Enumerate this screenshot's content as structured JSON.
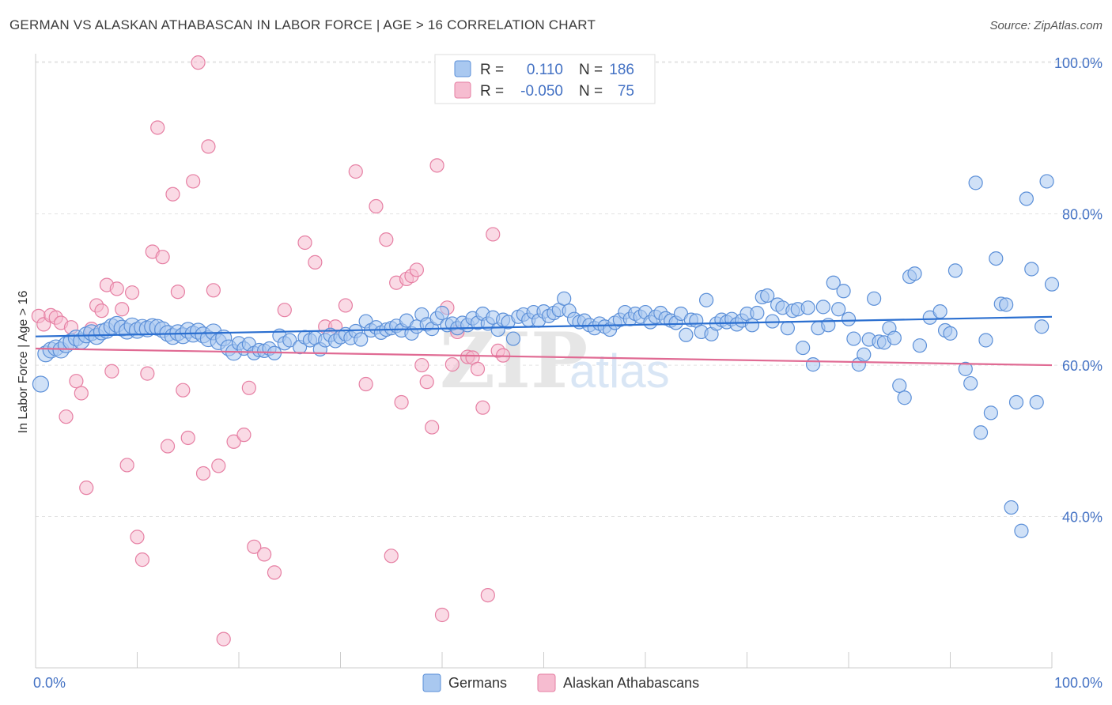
{
  "title": "GERMAN VS ALASKAN ATHABASCAN IN LABOR FORCE | AGE > 16 CORRELATION CHART",
  "source": "Source: ZipAtlas.com",
  "watermark": {
    "zip": "ZIP",
    "atlas": "atlas"
  },
  "colors": {
    "blue_fill": "#a9c8f0",
    "blue_stroke": "#5b8fd8",
    "blue_line": "#2b6fd0",
    "pink_fill": "#f6bcd0",
    "pink_stroke": "#e67fa3",
    "pink_line": "#e06a93",
    "grid": "#e3e3e3",
    "axis_text": "#4472c4"
  },
  "legend": {
    "rows": [
      {
        "r_label": "R =",
        "r_value": "0.110",
        "n_label": "N =",
        "n_value": "186",
        "series": "blue"
      },
      {
        "r_label": "R =",
        "r_value": "-0.050",
        "n_label": "N =",
        "n_value": "75",
        "series": "pink"
      }
    ]
  },
  "chart_data": {
    "type": "scatter",
    "title": "GERMAN VS ALASKAN ATHABASCAN IN LABOR FORCE | AGE > 16 CORRELATION CHART",
    "xlabel": "",
    "ylabel": "In Labor Force | Age > 16",
    "xlim": [
      0,
      100
    ],
    "ylim": [
      20,
      102
    ],
    "x_tick_labels": [
      "0.0%",
      "100.0%"
    ],
    "y_ticks": [
      40,
      60,
      80,
      100
    ],
    "y_tick_labels": [
      "40.0%",
      "60.0%",
      "80.0%",
      "100.0%"
    ],
    "grid": true,
    "legend_position": "bottom",
    "series": [
      {
        "name": "Germans",
        "color": "#a9c8f0",
        "trend": {
          "x": [
            0,
            100
          ],
          "y": [
            63.8,
            66.4
          ]
        },
        "points": [
          [
            0.5,
            57.5
          ],
          [
            1.0,
            61.5
          ],
          [
            1.5,
            62.0
          ],
          [
            2.0,
            62.3
          ],
          [
            2.5,
            62.0
          ],
          [
            3.0,
            62.7
          ],
          [
            3.5,
            63.1
          ],
          [
            4.0,
            63.6
          ],
          [
            4.5,
            63.2
          ],
          [
            5.0,
            64.0
          ],
          [
            5.5,
            64.3
          ],
          [
            6.0,
            63.8
          ],
          [
            6.5,
            64.4
          ],
          [
            7.0,
            64.6
          ],
          [
            7.5,
            65.1
          ],
          [
            8.0,
            65.4
          ],
          [
            8.5,
            64.9
          ],
          [
            9.0,
            64.5
          ],
          [
            9.5,
            65.2
          ],
          [
            10.0,
            64.6
          ],
          [
            10.5,
            65.0
          ],
          [
            11.0,
            64.8
          ],
          [
            11.5,
            65.1
          ],
          [
            12.0,
            65.0
          ],
          [
            12.5,
            64.7
          ],
          [
            13.0,
            64.2
          ],
          [
            13.5,
            63.8
          ],
          [
            14.0,
            64.3
          ],
          [
            14.5,
            63.9
          ],
          [
            15.0,
            64.6
          ],
          [
            15.5,
            64.1
          ],
          [
            16.0,
            64.5
          ],
          [
            16.5,
            64.0
          ],
          [
            17.0,
            63.5
          ],
          [
            17.5,
            64.4
          ],
          [
            18.0,
            63.1
          ],
          [
            18.5,
            63.6
          ],
          [
            19.0,
            62.3
          ],
          [
            19.5,
            61.7
          ],
          [
            20.0,
            62.9
          ],
          [
            20.5,
            62.2
          ],
          [
            21.0,
            62.8
          ],
          [
            21.5,
            61.6
          ],
          [
            22.0,
            62.0
          ],
          [
            22.5,
            61.9
          ],
          [
            23.0,
            62.2
          ],
          [
            23.5,
            61.6
          ],
          [
            24.0,
            63.9
          ],
          [
            24.5,
            62.9
          ],
          [
            25.0,
            63.3
          ],
          [
            26.0,
            62.4
          ],
          [
            26.5,
            63.7
          ],
          [
            27.0,
            63.3
          ],
          [
            27.5,
            63.6
          ],
          [
            28.0,
            62.1
          ],
          [
            28.5,
            63.3
          ],
          [
            29.0,
            64.0
          ],
          [
            29.5,
            63.2
          ],
          [
            30.0,
            63.7
          ],
          [
            30.5,
            64.1
          ],
          [
            31.0,
            63.6
          ],
          [
            31.5,
            64.5
          ],
          [
            32.0,
            63.4
          ],
          [
            32.5,
            65.8
          ],
          [
            33.0,
            64.6
          ],
          [
            33.5,
            65.0
          ],
          [
            34.0,
            64.3
          ],
          [
            34.5,
            64.7
          ],
          [
            35.0,
            64.9
          ],
          [
            35.5,
            65.2
          ],
          [
            36.0,
            64.6
          ],
          [
            36.5,
            65.9
          ],
          [
            37.0,
            64.2
          ],
          [
            37.5,
            65.1
          ],
          [
            38.0,
            66.7
          ],
          [
            38.5,
            65.4
          ],
          [
            39.0,
            64.8
          ],
          [
            39.5,
            66.2
          ],
          [
            40.0,
            66.9
          ],
          [
            40.5,
            65.3
          ],
          [
            41.0,
            65.5
          ],
          [
            41.5,
            64.9
          ],
          [
            42.0,
            65.6
          ],
          [
            42.5,
            65.3
          ],
          [
            43.0,
            66.2
          ],
          [
            43.5,
            65.6
          ],
          [
            44.0,
            66.8
          ],
          [
            44.5,
            65.5
          ],
          [
            45.0,
            66.3
          ],
          [
            45.5,
            64.7
          ],
          [
            46.0,
            66.0
          ],
          [
            46.5,
            65.7
          ],
          [
            47.0,
            63.5
          ],
          [
            47.5,
            66.4
          ],
          [
            48.0,
            66.7
          ],
          [
            48.5,
            66.0
          ],
          [
            49.0,
            67.0
          ],
          [
            49.5,
            65.9
          ],
          [
            50.0,
            67.1
          ],
          [
            50.5,
            66.5
          ],
          [
            51.0,
            66.9
          ],
          [
            51.5,
            67.3
          ],
          [
            52.0,
            68.8
          ],
          [
            52.5,
            67.2
          ],
          [
            53.0,
            66.1
          ],
          [
            53.5,
            65.7
          ],
          [
            54.0,
            65.9
          ],
          [
            54.5,
            65.3
          ],
          [
            55.0,
            64.9
          ],
          [
            55.5,
            65.5
          ],
          [
            56.0,
            65.1
          ],
          [
            56.5,
            64.7
          ],
          [
            57.0,
            65.6
          ],
          [
            57.5,
            66.0
          ],
          [
            58.0,
            67.0
          ],
          [
            58.5,
            66.1
          ],
          [
            59.0,
            66.8
          ],
          [
            59.5,
            66.4
          ],
          [
            60.0,
            67.0
          ],
          [
            60.5,
            65.7
          ],
          [
            61.0,
            66.4
          ],
          [
            61.5,
            66.9
          ],
          [
            62.0,
            66.2
          ],
          [
            62.5,
            65.9
          ],
          [
            63.0,
            65.6
          ],
          [
            63.5,
            66.8
          ],
          [
            64.0,
            64.0
          ],
          [
            64.5,
            66.0
          ],
          [
            65.0,
            65.9
          ],
          [
            65.5,
            64.4
          ],
          [
            66.0,
            68.6
          ],
          [
            66.5,
            64.1
          ],
          [
            67.0,
            65.5
          ],
          [
            67.5,
            66.0
          ],
          [
            68.0,
            65.7
          ],
          [
            68.5,
            66.1
          ],
          [
            69.0,
            65.4
          ],
          [
            69.5,
            65.9
          ],
          [
            70.0,
            66.8
          ],
          [
            70.5,
            65.3
          ],
          [
            71.0,
            66.9
          ],
          [
            71.5,
            69.0
          ],
          [
            72.0,
            69.2
          ],
          [
            72.5,
            65.8
          ],
          [
            73.0,
            68.0
          ],
          [
            73.5,
            67.6
          ],
          [
            74.0,
            64.9
          ],
          [
            74.5,
            67.2
          ],
          [
            75.0,
            67.4
          ],
          [
            75.5,
            62.3
          ],
          [
            76.0,
            67.6
          ],
          [
            76.5,
            60.1
          ],
          [
            77.0,
            64.9
          ],
          [
            77.5,
            67.7
          ],
          [
            78.0,
            65.3
          ],
          [
            78.5,
            70.9
          ],
          [
            79.0,
            67.4
          ],
          [
            79.5,
            69.8
          ],
          [
            80.0,
            66.1
          ],
          [
            80.5,
            63.5
          ],
          [
            81.0,
            60.1
          ],
          [
            81.5,
            61.4
          ],
          [
            82.0,
            63.4
          ],
          [
            82.5,
            68.8
          ],
          [
            83.0,
            63.1
          ],
          [
            83.5,
            63.0
          ],
          [
            84.0,
            64.9
          ],
          [
            84.5,
            63.6
          ],
          [
            85.0,
            57.3
          ],
          [
            85.5,
            55.7
          ],
          [
            86.0,
            71.7
          ],
          [
            86.5,
            72.1
          ],
          [
            87.0,
            62.6
          ],
          [
            88.0,
            66.3
          ],
          [
            89.0,
            67.1
          ],
          [
            89.5,
            64.6
          ],
          [
            90.0,
            64.2
          ],
          [
            90.5,
            72.5
          ],
          [
            91.5,
            59.5
          ],
          [
            92.0,
            57.6
          ],
          [
            92.5,
            84.1
          ],
          [
            93.0,
            51.1
          ],
          [
            93.5,
            63.3
          ],
          [
            94.0,
            53.7
          ],
          [
            94.5,
            74.1
          ],
          [
            95.0,
            68.1
          ],
          [
            95.5,
            68.0
          ],
          [
            96.5,
            55.1
          ],
          [
            96.0,
            41.2
          ],
          [
            97.0,
            38.1
          ],
          [
            97.5,
            82.0
          ],
          [
            98.0,
            72.7
          ],
          [
            98.5,
            55.1
          ],
          [
            99.0,
            65.1
          ],
          [
            99.5,
            84.3
          ],
          [
            100.0,
            70.7
          ]
        ]
      },
      {
        "name": "Alaskan Athabascans",
        "color": "#f6bcd0",
        "trend": {
          "x": [
            0,
            100
          ],
          "y": [
            62.2,
            60.0
          ]
        },
        "points": [
          [
            0.3,
            66.5
          ],
          [
            0.8,
            65.4
          ],
          [
            1.5,
            66.6
          ],
          [
            2.0,
            66.3
          ],
          [
            2.5,
            65.6
          ],
          [
            3.0,
            53.2
          ],
          [
            3.5,
            65.0
          ],
          [
            4.0,
            57.9
          ],
          [
            4.5,
            56.3
          ],
          [
            5.0,
            43.8
          ],
          [
            5.5,
            64.8
          ],
          [
            6.0,
            67.9
          ],
          [
            6.5,
            67.2
          ],
          [
            7.0,
            70.6
          ],
          [
            7.5,
            59.2
          ],
          [
            8.0,
            70.1
          ],
          [
            8.5,
            67.4
          ],
          [
            9.0,
            46.8
          ],
          [
            9.5,
            69.6
          ],
          [
            10.0,
            37.3
          ],
          [
            10.5,
            34.3
          ],
          [
            11.0,
            58.9
          ],
          [
            11.5,
            75.0
          ],
          [
            12.0,
            91.4
          ],
          [
            12.5,
            74.3
          ],
          [
            13.0,
            49.3
          ],
          [
            13.5,
            82.6
          ],
          [
            14.0,
            69.7
          ],
          [
            14.5,
            56.7
          ],
          [
            15.0,
            50.4
          ],
          [
            15.5,
            84.3
          ],
          [
            16.0,
            100.0
          ],
          [
            16.5,
            45.7
          ],
          [
            17.0,
            88.9
          ],
          [
            17.5,
            69.9
          ],
          [
            18.0,
            46.7
          ],
          [
            18.5,
            23.8
          ],
          [
            19.5,
            49.9
          ],
          [
            20.5,
            50.8
          ],
          [
            21.0,
            57.0
          ],
          [
            21.5,
            36.0
          ],
          [
            22.5,
            35.0
          ],
          [
            23.5,
            32.6
          ],
          [
            24.5,
            67.3
          ],
          [
            26.5,
            76.2
          ],
          [
            27.5,
            73.6
          ],
          [
            28.5,
            65.1
          ],
          [
            29.5,
            65.1
          ],
          [
            30.5,
            67.9
          ],
          [
            31.5,
            85.6
          ],
          [
            32.5,
            57.5
          ],
          [
            33.5,
            81.0
          ],
          [
            34.5,
            76.6
          ],
          [
            35.0,
            34.8
          ],
          [
            35.5,
            70.9
          ],
          [
            36.0,
            55.1
          ],
          [
            36.5,
            71.4
          ],
          [
            37.0,
            71.8
          ],
          [
            37.5,
            72.6
          ],
          [
            38.0,
            60.0
          ],
          [
            38.5,
            57.8
          ],
          [
            39.0,
            51.8
          ],
          [
            39.5,
            86.4
          ],
          [
            40.0,
            27.0
          ],
          [
            40.5,
            67.6
          ],
          [
            41.0,
            60.1
          ],
          [
            41.5,
            64.4
          ],
          [
            42.5,
            61.1
          ],
          [
            43.0,
            61.0
          ],
          [
            43.5,
            59.5
          ],
          [
            44.0,
            54.4
          ],
          [
            44.5,
            29.6
          ],
          [
            45.0,
            77.3
          ],
          [
            45.5,
            61.9
          ],
          [
            46.0,
            61.3
          ]
        ]
      }
    ]
  },
  "bottom_legend": [
    {
      "label": "Germans",
      "series": "blue"
    },
    {
      "label": "Alaskan Athabascans",
      "series": "pink"
    }
  ]
}
